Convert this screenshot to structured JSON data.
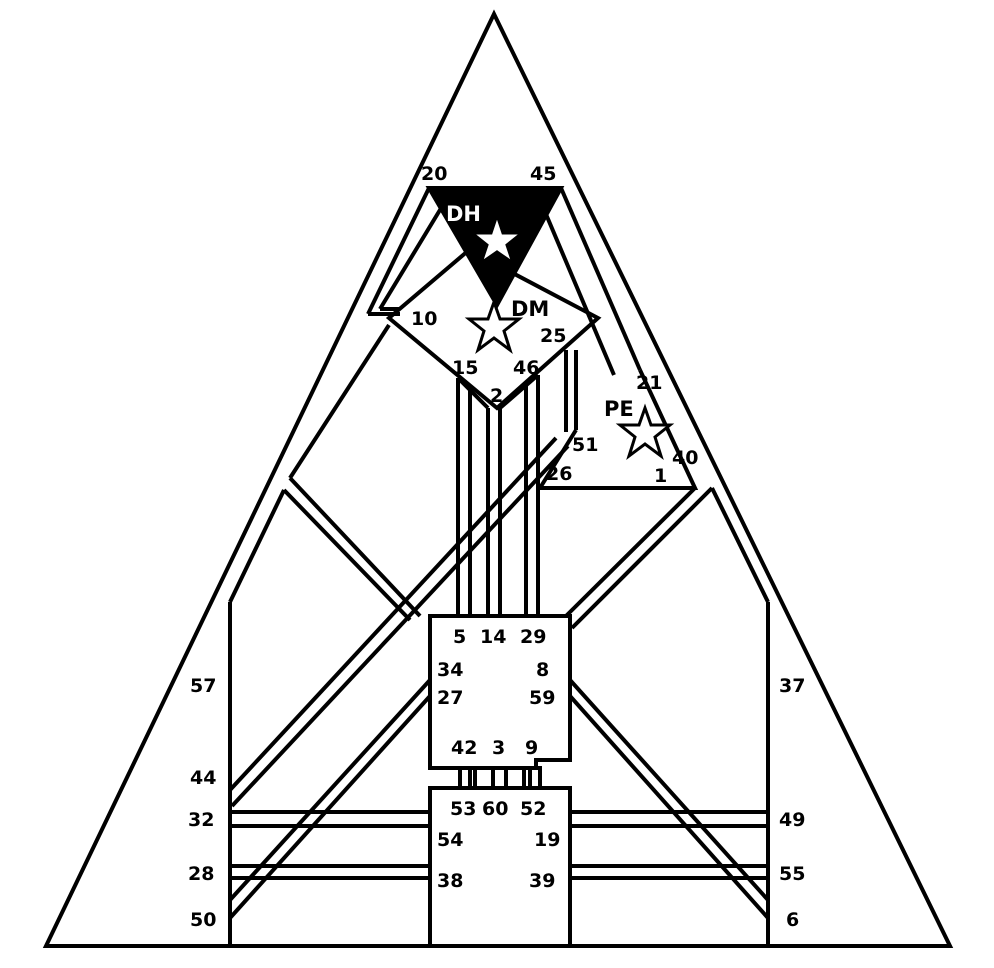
{
  "gates": {
    "g20": "20",
    "g45": "45",
    "g10": "10",
    "g25": "25",
    "g15": "15",
    "g46": "46",
    "g2": "2",
    "g21": "21",
    "g51": "51",
    "g26": "26",
    "g40": "40",
    "g1": "1",
    "g5": "5",
    "g14": "14",
    "g29": "29",
    "g34": "34",
    "g8": "8",
    "g27": "27",
    "g59": "59",
    "g42": "42",
    "g3": "3",
    "g9": "9",
    "g53": "53",
    "g60": "60",
    "g52": "52",
    "g54": "54",
    "g19": "19",
    "g38": "38",
    "g39": "39",
    "g57": "57",
    "g44": "44",
    "g32": "32",
    "g28": "28",
    "g50": "50",
    "g37": "37",
    "g49": "49",
    "g55": "55",
    "g6": "6"
  },
  "markers": {
    "dh": "DH",
    "dm": "DM",
    "pe": "PE"
  },
  "colors": {
    "ink": "#000000",
    "paper": "#ffffff"
  },
  "icons": [
    "star-icon"
  ]
}
